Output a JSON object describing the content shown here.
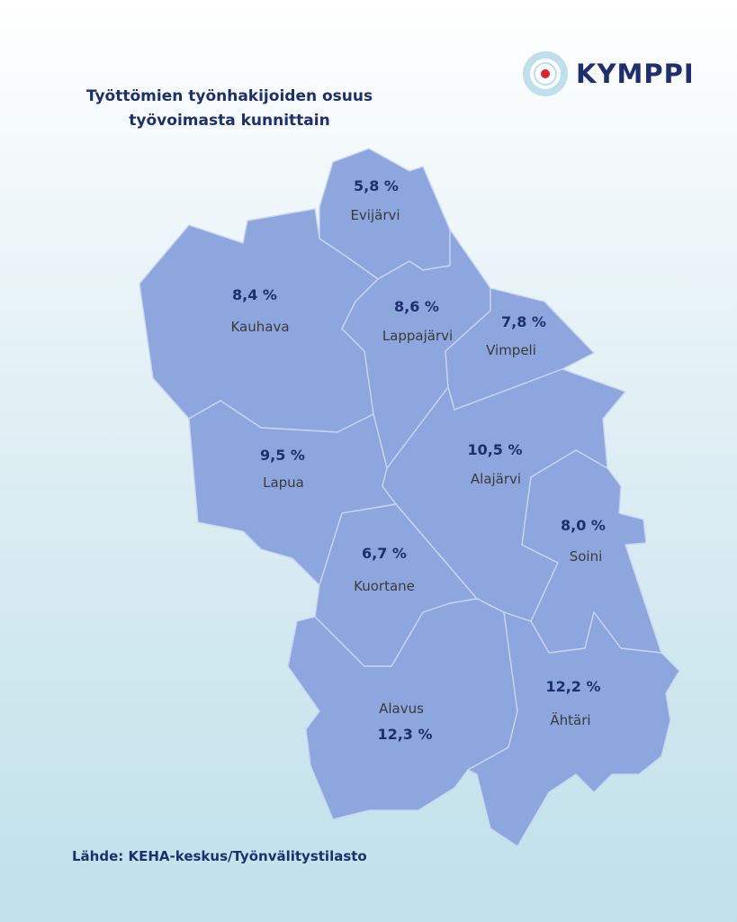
{
  "title": {
    "line1": "Työttömien työnhakijoiden osuus",
    "line2": "työvoimasta kunnittain"
  },
  "logo": {
    "text": "KYMPPI",
    "ring_color": "#bfe0ea",
    "dot_color": "#e2202d"
  },
  "map_fill_color": "#8ea6de",
  "municipalities": {
    "evijarvi": {
      "name": "Evijärvi",
      "value": "5,8 %"
    },
    "kauhava": {
      "name": "Kauhava",
      "value": "8,4 %"
    },
    "lappajarvi": {
      "name": "Lappajärvi",
      "value": "8,6 %"
    },
    "vimpeli": {
      "name": "Vimpeli",
      "value": "7,8 %"
    },
    "lapua": {
      "name": "Lapua",
      "value": "9,5 %"
    },
    "alajarvi": {
      "name": "Alajärvi",
      "value": "10,5 %"
    },
    "soini": {
      "name": "Soini",
      "value": "8,0 %"
    },
    "kuortane": {
      "name": "Kuortane",
      "value": "6,7 %"
    },
    "alavus": {
      "name": "Alavus",
      "value": "12,3 %"
    },
    "ahtari": {
      "name": "Ähtäri",
      "value": "12,2 %"
    }
  },
  "source": "Lähde: KEHA-keskus/Työnvälitystilasto"
}
